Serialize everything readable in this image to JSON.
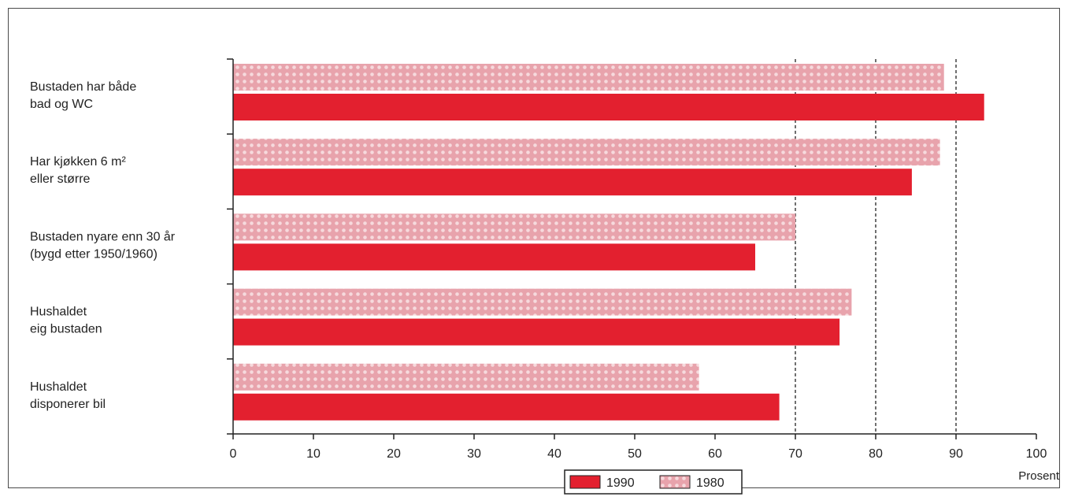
{
  "colors": {
    "series_1990": "#e3202f",
    "series_1980": "#e8a3ac",
    "dot": "#f6dadd",
    "axis": "#222222"
  },
  "chart_data": {
    "type": "bar",
    "orientation": "horizontal",
    "categories": [
      [
        "Bustaden har både",
        "bad og WC"
      ],
      [
        "Har kjøkken 6 m²",
        "eller større"
      ],
      [
        "Bustaden nyare enn 30 år",
        "(bygd etter 1950/1960)"
      ],
      [
        "Hushaldet",
        "eig bustaden"
      ],
      [
        "Hushaldet",
        "disponerer bil"
      ]
    ],
    "series": [
      {
        "name": "1980",
        "values": [
          88.5,
          88,
          70,
          77,
          58
        ]
      },
      {
        "name": "1990",
        "values": [
          93.5,
          84.5,
          65,
          75.5,
          68
        ]
      }
    ],
    "xlim": [
      0,
      100
    ],
    "xticks": [
      0,
      10,
      20,
      30,
      40,
      50,
      60,
      70,
      80,
      90,
      100
    ],
    "xlabel": "Prosent",
    "title": "",
    "grid": "dashed vertical lines at 70, 80, 90",
    "dashed_gridlines": [
      70,
      80,
      90
    ],
    "legend_position": "bottom-center",
    "legend": [
      "1990",
      "1980"
    ]
  }
}
